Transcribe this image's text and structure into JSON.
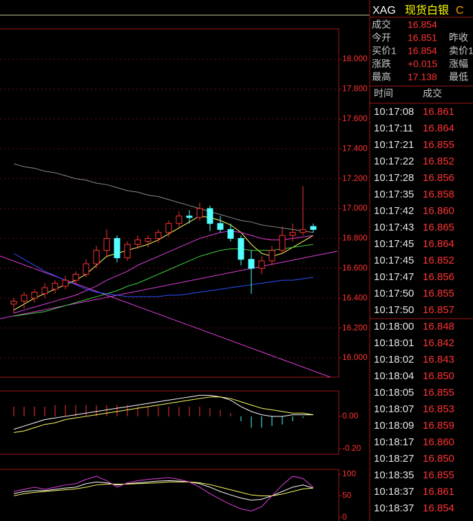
{
  "header": {
    "symbol": "XAG",
    "name": "现货白银",
    "extra": "C"
  },
  "quote": [
    {
      "label": "成交",
      "value": "16.854"
    },
    {
      "label": "今开",
      "value": "16.851",
      "label2": "昨收"
    },
    {
      "label": "买价1",
      "value": "16.854",
      "label2": "卖价1"
    },
    {
      "label": "涨跌",
      "value": "+0.015",
      "label2": "涨幅"
    },
    {
      "label": "最高",
      "value": "17.138",
      "label2": "最低"
    }
  ],
  "trades_header": [
    "时间",
    "成交"
  ],
  "trades": [
    [
      "10:17:08",
      "16.861"
    ],
    [
      "10:17:11",
      "16.864"
    ],
    [
      "10:17:21",
      "16.855"
    ],
    [
      "10:17:22",
      "16.852"
    ],
    [
      "10:17:28",
      "16.856"
    ],
    [
      "10:17:35",
      "16.858"
    ],
    [
      "10:17:42",
      "16.860"
    ],
    [
      "10:17:43",
      "16.865"
    ],
    [
      "10:17:45",
      "16.864"
    ],
    [
      "10:17:45",
      "16.852"
    ],
    [
      "10:17:47",
      "16.856"
    ],
    [
      "10:17:50",
      "16.855"
    ],
    [
      "10:17:50",
      "16.857"
    ],
    [
      "10:18:00",
      "16.848"
    ],
    [
      "10:18:01",
      "16.842"
    ],
    [
      "10:18:02",
      "16.843"
    ],
    [
      "10:18:04",
      "16.850"
    ],
    [
      "10:18:05",
      "16.855"
    ],
    [
      "10:18:07",
      "16.853"
    ],
    [
      "10:18:09",
      "16.859"
    ],
    [
      "10:18:17",
      "16.860"
    ],
    [
      "10:18:27",
      "16.850"
    ],
    [
      "10:18:35",
      "16.855"
    ],
    [
      "10:18:37",
      "16.861"
    ],
    [
      "10:18:37",
      "16.854"
    ]
  ],
  "chart_data": [
    {
      "type": "candlestick",
      "up_color": "#ff3232",
      "down_color": "#54ffff",
      "grid": true,
      "ylim": [
        15.871,
        18.203
      ],
      "yticks": [
        {
          "value": 16,
          "label": "16.000"
        },
        {
          "value": 16.2,
          "label": "16.200"
        },
        {
          "value": 16.4,
          "label": "16.400"
        },
        {
          "value": 16.6,
          "label": "16.600"
        },
        {
          "value": 16.8,
          "label": "16.800"
        },
        {
          "value": 17,
          "label": "17.000"
        },
        {
          "value": 17.2,
          "label": "17.200"
        },
        {
          "value": 17.4,
          "label": "17.400"
        },
        {
          "value": 17.6,
          "label": "17.600"
        },
        {
          "value": 17.8,
          "label": "17.800"
        },
        {
          "value": 18,
          "label": "18.000"
        }
      ],
      "open": [
        16.36,
        16.38,
        16.4,
        16.43,
        16.46,
        16.48,
        16.52,
        16.56,
        16.63,
        16.72,
        16.8,
        16.67,
        16.76,
        16.78,
        16.8,
        16.84,
        16.9,
        16.95,
        16.94,
        17.0,
        16.9,
        16.86,
        16.8,
        16.66,
        16.6,
        16.65,
        16.72,
        16.82,
        16.84,
        16.88
      ],
      "high": [
        16.4,
        16.44,
        16.46,
        16.5,
        16.52,
        16.55,
        16.58,
        16.66,
        16.75,
        16.86,
        16.82,
        16.78,
        16.82,
        16.82,
        16.86,
        16.92,
        16.98,
        16.99,
        17.04,
        17.02,
        16.95,
        16.9,
        16.82,
        16.72,
        16.68,
        16.75,
        16.88,
        16.9,
        17.15,
        16.9
      ],
      "low": [
        16.3,
        16.33,
        16.37,
        16.4,
        16.43,
        16.46,
        16.49,
        16.54,
        16.6,
        16.68,
        16.64,
        16.65,
        16.73,
        16.74,
        16.77,
        16.81,
        16.87,
        16.9,
        16.92,
        16.85,
        16.84,
        16.78,
        16.62,
        16.43,
        16.56,
        16.62,
        16.7,
        16.78,
        16.82,
        16.84
      ],
      "close": [
        16.38,
        16.42,
        16.44,
        16.47,
        16.5,
        16.52,
        16.56,
        16.63,
        16.72,
        16.8,
        16.67,
        16.76,
        16.79,
        16.8,
        16.84,
        16.9,
        16.95,
        16.94,
        17.0,
        16.9,
        16.86,
        16.8,
        16.66,
        16.6,
        16.65,
        16.72,
        16.82,
        16.84,
        16.86,
        16.86
      ],
      "lines": [
        {
          "color": "#8c8c8c",
          "values": [
            17.3,
            17.28,
            17.27,
            17.25,
            17.24,
            17.22,
            17.2,
            17.19,
            17.17,
            17.16,
            17.14,
            17.12,
            17.11,
            17.09,
            17.08,
            17.06,
            17.04,
            17.02,
            17.0,
            16.98,
            16.96,
            16.94,
            16.92,
            16.91,
            16.89,
            16.88,
            16.87,
            16.86,
            16.85,
            16.84
          ]
        },
        {
          "color": "#ffff64",
          "values": [
            16.32,
            16.36,
            16.4,
            16.43,
            16.46,
            16.49,
            16.52,
            16.56,
            16.62,
            16.68,
            16.7,
            16.72,
            16.74,
            16.76,
            16.79,
            16.83,
            16.87,
            16.91,
            16.95,
            16.94,
            16.92,
            16.89,
            16.84,
            16.76,
            16.7,
            16.68,
            16.7,
            16.74,
            16.78,
            16.82
          ]
        },
        {
          "color": "#e040e0",
          "values": [
            16.3,
            16.32,
            16.34,
            16.36,
            16.38,
            16.4,
            16.42,
            16.45,
            16.48,
            16.52,
            16.55,
            16.58,
            16.62,
            16.65,
            16.68,
            16.71,
            16.74,
            16.77,
            16.8,
            16.82,
            16.84,
            16.85,
            16.84,
            16.82,
            16.8,
            16.79,
            16.79,
            16.8,
            16.81,
            16.82
          ]
        },
        {
          "color": "#40d040",
          "values": [
            16.28,
            16.29,
            16.3,
            16.31,
            16.33,
            16.35,
            16.37,
            16.39,
            16.41,
            16.43,
            16.45,
            16.48,
            16.5,
            16.53,
            16.56,
            16.59,
            16.62,
            16.65,
            16.68,
            16.7,
            16.72,
            16.73,
            16.73,
            16.72,
            16.72,
            16.72,
            16.73,
            16.74,
            16.75,
            16.76
          ]
        },
        {
          "color": "#3050ff",
          "values": [
            16.7,
            16.66,
            16.62,
            16.58,
            16.55,
            16.52,
            16.49,
            16.46,
            16.44,
            16.43,
            16.42,
            16.41,
            16.41,
            16.41,
            16.41,
            16.42,
            16.42,
            16.43,
            16.44,
            16.45,
            16.46,
            16.47,
            16.48,
            16.49,
            16.5,
            16.51,
            16.52,
            16.52,
            16.53,
            16.54
          ]
        }
      ]
    },
    {
      "type": "macd",
      "up_color": "#ff3232",
      "down_color": "#54ffff",
      "ylim": [
        -0.234,
        0.157
      ],
      "yticks": [
        {
          "value": 0,
          "label": "0.00"
        },
        {
          "value": -0.2,
          "label": "-0.20"
        }
      ],
      "histogram": [
        0.06,
        0.06,
        0.06,
        0.06,
        0.07,
        0.07,
        0.07,
        0.07,
        0.07,
        0.07,
        0.07,
        0.07,
        0.06,
        0.06,
        0.06,
        0.06,
        0.06,
        0.06,
        0.06,
        0.05,
        0.04,
        0.02,
        -0.03,
        -0.07,
        -0.07,
        -0.06,
        -0.05,
        -0.03,
        -0.01,
        0.0
      ],
      "lines": [
        {
          "color": "#ffffff",
          "values": [
            -0.08,
            -0.06,
            -0.04,
            -0.02,
            -0.01,
            0.0,
            0.01,
            0.02,
            0.03,
            0.04,
            0.05,
            0.06,
            0.07,
            0.08,
            0.09,
            0.1,
            0.11,
            0.12,
            0.13,
            0.13,
            0.12,
            0.1,
            0.06,
            0.03,
            0.01,
            0.0,
            0.0,
            0.01,
            0.01,
            0.01
          ]
        },
        {
          "color": "#ffff64",
          "values": [
            -0.1,
            -0.09,
            -0.07,
            -0.05,
            -0.04,
            -0.02,
            -0.01,
            0.0,
            0.01,
            0.02,
            0.03,
            0.04,
            0.05,
            0.06,
            0.07,
            0.08,
            0.09,
            0.1,
            0.11,
            0.12,
            0.12,
            0.11,
            0.09,
            0.07,
            0.05,
            0.04,
            0.03,
            0.02,
            0.02,
            0.01
          ]
        }
      ]
    },
    {
      "type": "kdj",
      "ylim": [
        -8,
        111
      ],
      "yticks": [
        100,
        50,
        0
      ],
      "lines": [
        {
          "color": "#ffffff",
          "values": [
            55,
            60,
            62,
            62,
            65,
            68,
            70,
            78,
            82,
            80,
            75,
            78,
            80,
            82,
            84,
            85,
            84,
            82,
            78,
            70,
            60,
            52,
            45,
            40,
            42,
            50,
            60,
            70,
            75,
            68
          ]
        },
        {
          "color": "#ffff64",
          "values": [
            50,
            55,
            58,
            60,
            62,
            64,
            66,
            70,
            75,
            77,
            77,
            77,
            78,
            79,
            80,
            82,
            82,
            82,
            80,
            76,
            70,
            64,
            58,
            52,
            50,
            50,
            54,
            60,
            66,
            68
          ]
        },
        {
          "color": "#e040e0",
          "values": [
            60,
            65,
            70,
            65,
            70,
            75,
            78,
            88,
            95,
            85,
            70,
            80,
            85,
            88,
            90,
            92,
            88,
            82,
            70,
            55,
            42,
            30,
            20,
            15,
            25,
            50,
            75,
            95,
            90,
            70
          ]
        }
      ]
    }
  ]
}
